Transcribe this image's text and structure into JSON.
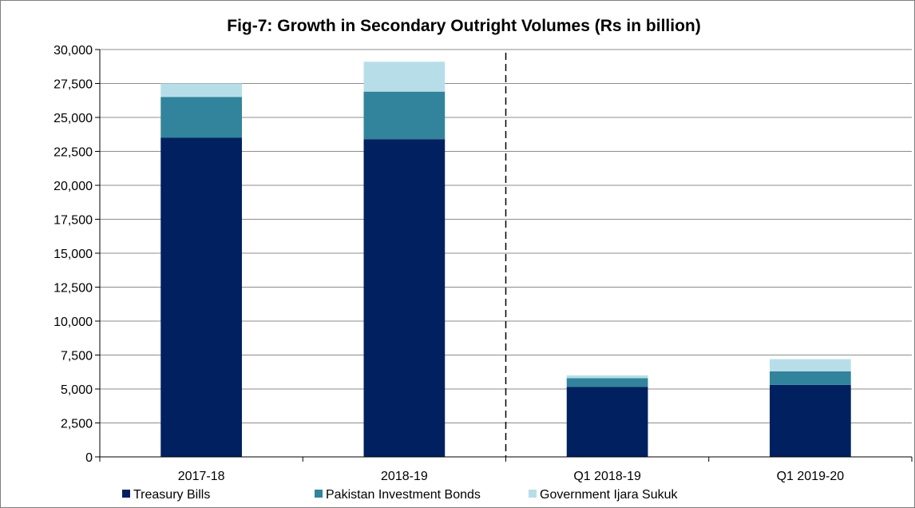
{
  "chart_data": {
    "type": "bar",
    "stacked": true,
    "title": "Fig-7: Growth in Secondary Outright Volumes (Rs in billion)",
    "categories": [
      "2017-18",
      "2018-19",
      "Q1 2018-19",
      "Q1 2019-20"
    ],
    "series": [
      {
        "name": "Treasury Bills",
        "color": "#002060",
        "values": [
          23500,
          23400,
          5150,
          5300
        ]
      },
      {
        "name": "Pakistan Investment Bonds",
        "color": "#31849b",
        "values": [
          3000,
          3500,
          650,
          1000
        ]
      },
      {
        "name": "Government Ijara Sukuk",
        "color": "#b7dee8",
        "values": [
          1000,
          2200,
          200,
          900
        ]
      }
    ],
    "yticks": [
      "0",
      "2,500",
      "5,000",
      "7,500",
      "10,000",
      "12,500",
      "15,000",
      "17,500",
      "20,000",
      "22,500",
      "25,000",
      "27,500",
      "30,000"
    ],
    "ylim": [
      0,
      30000
    ],
    "grid": true,
    "legend": "bottom",
    "divider_between": [
      1,
      2
    ]
  }
}
